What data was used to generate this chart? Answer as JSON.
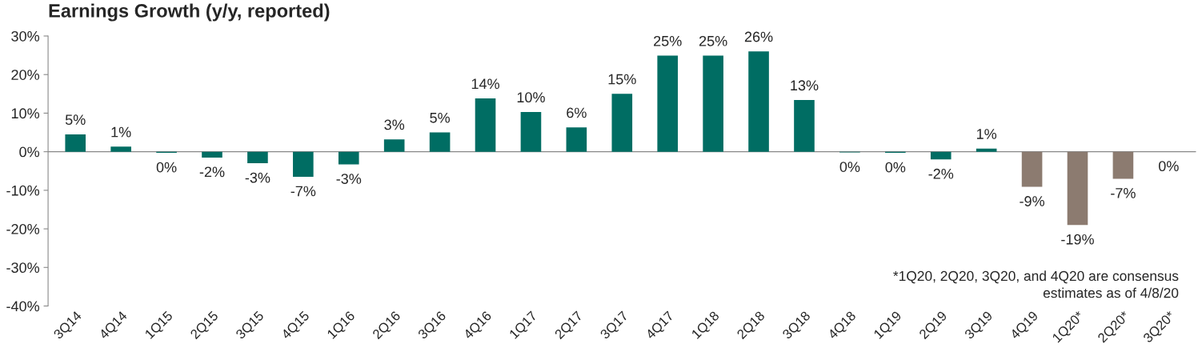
{
  "chart_data": {
    "type": "bar",
    "title": "Earnings Growth (y/y, reported)",
    "categories": [
      "3Q14",
      "4Q14",
      "1Q15",
      "2Q15",
      "3Q15",
      "4Q15",
      "1Q16",
      "2Q16",
      "3Q16",
      "4Q16",
      "1Q17",
      "2Q17",
      "3Q17",
      "4Q17",
      "1Q18",
      "2Q18",
      "3Q18",
      "4Q18",
      "1Q19",
      "2Q19",
      "3Q19",
      "4Q19",
      "1Q20*",
      "2Q20*",
      "3Q20*"
    ],
    "values": [
      4.5,
      1.3,
      -0.3,
      -1.5,
      -3.0,
      -6.5,
      -3.3,
      3.2,
      5.0,
      13.8,
      10.3,
      6.3,
      15.0,
      24.9,
      24.9,
      26.0,
      13.4,
      -0.2,
      -0.3,
      -2.0,
      0.8,
      -9.1,
      -19.0,
      -7.0,
      0.0
    ],
    "value_labels": [
      "5%",
      "1%",
      "0%",
      "-2%",
      "-3%",
      "-7%",
      "-3%",
      "3%",
      "5%",
      "14%",
      "10%",
      "6%",
      "15%",
      "25%",
      "25%",
      "26%",
      "13%",
      "0%",
      "0%",
      "-2%",
      "1%",
      "-9%",
      "-19%",
      "-7%",
      "0%"
    ],
    "colors": [
      "#006d63",
      "#006d63",
      "#006d63",
      "#006d63",
      "#006d63",
      "#006d63",
      "#006d63",
      "#006d63",
      "#006d63",
      "#006d63",
      "#006d63",
      "#006d63",
      "#006d63",
      "#006d63",
      "#006d63",
      "#006d63",
      "#006d63",
      "#006d63",
      "#006d63",
      "#006d63",
      "#006d63",
      "#8c7b70",
      "#8c7b70",
      "#8c7b70",
      "#8c7b70"
    ],
    "ylim": [
      -40,
      30
    ],
    "yticks": [
      {
        "value": -40,
        "label": "-40%"
      },
      {
        "value": -30,
        "label": "-30%"
      },
      {
        "value": -20,
        "label": "-20%"
      },
      {
        "value": -10,
        "label": "-10%"
      },
      {
        "value": 0,
        "label": "0%"
      },
      {
        "value": 10,
        "label": "10%"
      },
      {
        "value": 20,
        "label": "20%"
      },
      {
        "value": 30,
        "label": "30%"
      }
    ],
    "annotations": [
      "*1Q20, 2Q20, 3Q20, and 4Q20 are consensus\nestimates as of 4/8/20"
    ],
    "ref_lines": [
      {
        "axis": "y",
        "value": 0,
        "color": "#888888"
      }
    ],
    "grid": false,
    "legend": false
  }
}
